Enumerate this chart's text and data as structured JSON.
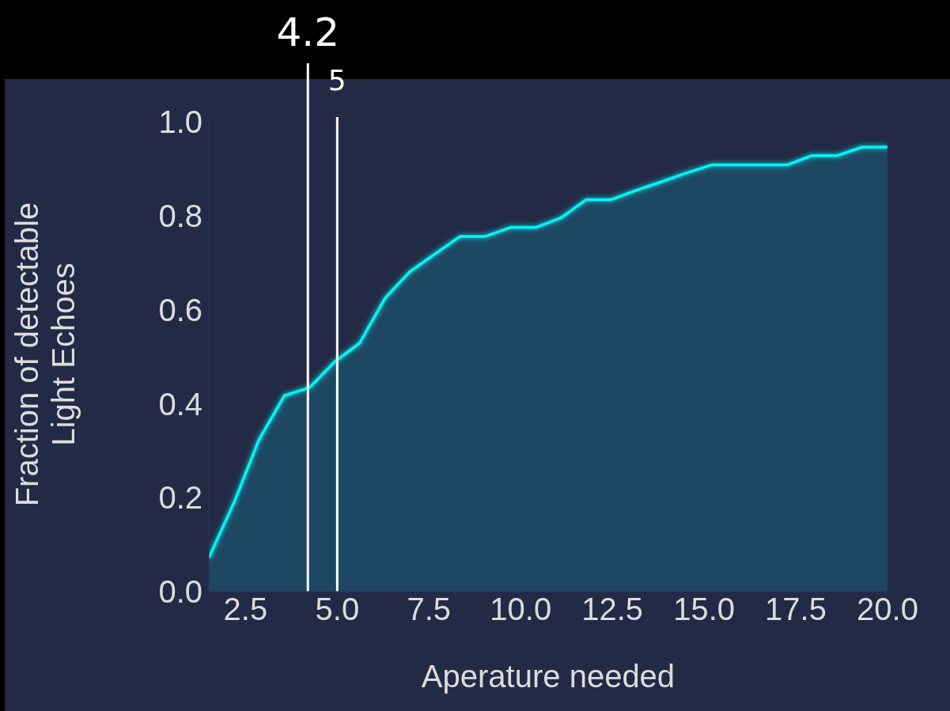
{
  "chart_data": {
    "type": "area",
    "xlabel": "Aperature needed",
    "ylabel": "Fraction of detectable\nLight Echoes",
    "x": [
      1.5,
      2.19,
      2.87,
      3.56,
      4.24,
      4.93,
      5.61,
      6.3,
      6.98,
      7.67,
      8.35,
      9.04,
      9.72,
      10.41,
      11.09,
      11.78,
      12.46,
      13.15,
      13.83,
      14.52,
      15.2,
      15.89,
      16.57,
      17.26,
      17.94,
      18.63,
      19.31,
      20
    ],
    "series": [
      {
        "color": "#00f5f5",
        "values": [
          0.072,
          0.19,
          0.324,
          0.417,
          0.434,
          0.489,
          0.529,
          0.624,
          0.681,
          0.719,
          0.756,
          0.756,
          0.775,
          0.775,
          0.795,
          0.834,
          0.834,
          0.854,
          0.872,
          0.891,
          0.908,
          0.908,
          0.908,
          0.908,
          0.928,
          0.928,
          0.946,
          0.946
        ]
      }
    ],
    "xlim": [
      1.5,
      20
    ],
    "xticks": [
      {
        "value": 2.5,
        "label": "2.5"
      },
      {
        "value": 5,
        "label": "5.0"
      },
      {
        "value": 7.5,
        "label": "7.5"
      },
      {
        "value": 10,
        "label": "10.0"
      },
      {
        "value": 12.5,
        "label": "12.5"
      },
      {
        "value": 15,
        "label": "15.0"
      },
      {
        "value": 17.5,
        "label": "17.5"
      },
      {
        "value": 20,
        "label": "20.0"
      }
    ],
    "ylim": [
      0,
      1.01
    ],
    "yticks": [
      {
        "value": 0,
        "label": "0.0"
      },
      {
        "value": 0.2,
        "label": "0.2"
      },
      {
        "value": 0.4,
        "label": "0.4"
      },
      {
        "value": 0.6,
        "label": "0.6"
      },
      {
        "value": 0.8,
        "label": "0.8"
      },
      {
        "value": 1,
        "label": "1.0"
      }
    ],
    "ref_lines": [
      {
        "axis": "x",
        "value": 4.2,
        "label": "4.2",
        "color": "#ffffff"
      },
      {
        "axis": "x",
        "value": 5,
        "label": "5",
        "color": "#ffffff"
      }
    ],
    "grid": false,
    "legend": false
  }
}
